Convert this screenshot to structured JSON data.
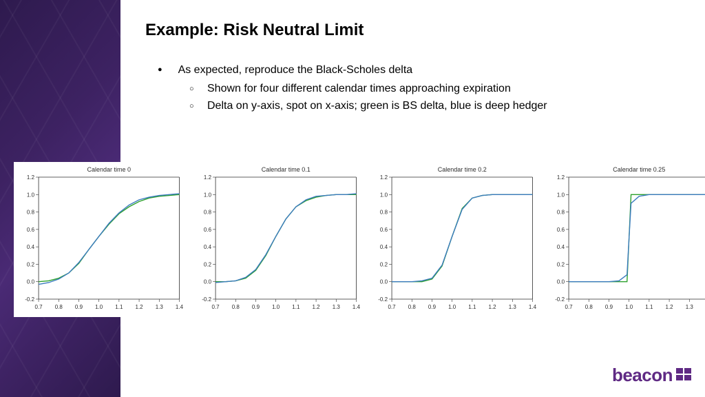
{
  "title": "Example: Risk Neutral Limit",
  "bullets": {
    "main": "As expected, reproduce the Black-Scholes delta",
    "sub1": "Shown for four different calendar times approaching expiration",
    "sub2": "Delta on y-axis, spot on x-axis; green is BS delta, blue is deep hedger"
  },
  "logo_text": "beacon",
  "brand_color": "#5f2a84",
  "sidebar_gradient": [
    "#2e1a4e",
    "#3d2262",
    "#4a2a75"
  ],
  "chart_common": {
    "type": "line",
    "xlim": [
      0.7,
      1.4
    ],
    "ylim": [
      -0.2,
      1.2
    ],
    "xticks": [
      0.7,
      0.8,
      0.9,
      1.0,
      1.1,
      1.2,
      1.3,
      1.4
    ],
    "yticks": [
      -0.2,
      0.0,
      0.2,
      0.4,
      0.6,
      0.8,
      1.0,
      1.2
    ],
    "background_color": "#ffffff",
    "axis_color": "#2d2d2d",
    "title_fontsize": 9,
    "tick_fontsize": 8,
    "line_width": 1.4,
    "series_colors": {
      "bs_delta": "#2ca02c",
      "deep_hedger": "#3b7bbf"
    }
  },
  "charts": [
    {
      "title": "Calendar time 0",
      "x": [
        0.7,
        0.75,
        0.8,
        0.85,
        0.9,
        0.95,
        1.0,
        1.05,
        1.1,
        1.15,
        1.2,
        1.25,
        1.3,
        1.35,
        1.4
      ],
      "bs": [
        0.0,
        0.01,
        0.04,
        0.1,
        0.21,
        0.37,
        0.52,
        0.66,
        0.78,
        0.86,
        0.92,
        0.96,
        0.98,
        0.99,
        1.0
      ],
      "dh": [
        -0.03,
        -0.01,
        0.03,
        0.1,
        0.22,
        0.37,
        0.52,
        0.67,
        0.79,
        0.88,
        0.94,
        0.97,
        0.99,
        1.0,
        1.01
      ]
    },
    {
      "title": "Calendar time 0.1",
      "x": [
        0.7,
        0.75,
        0.8,
        0.85,
        0.9,
        0.95,
        1.0,
        1.05,
        1.1,
        1.15,
        1.2,
        1.25,
        1.3,
        1.35,
        1.4
      ],
      "bs": [
        0.0,
        0.0,
        0.01,
        0.04,
        0.13,
        0.3,
        0.52,
        0.72,
        0.86,
        0.93,
        0.97,
        0.99,
        1.0,
        1.0,
        1.0
      ],
      "dh": [
        -0.01,
        0.0,
        0.01,
        0.05,
        0.14,
        0.31,
        0.52,
        0.72,
        0.86,
        0.94,
        0.98,
        0.99,
        1.0,
        1.0,
        1.01
      ]
    },
    {
      "title": "Calendar time 0.2",
      "x": [
        0.7,
        0.75,
        0.8,
        0.85,
        0.9,
        0.95,
        1.0,
        1.05,
        1.1,
        1.15,
        1.2,
        1.25,
        1.3,
        1.35,
        1.4
      ],
      "bs": [
        0.0,
        0.0,
        0.0,
        0.0,
        0.03,
        0.18,
        0.52,
        0.84,
        0.96,
        0.99,
        1.0,
        1.0,
        1.0,
        1.0,
        1.0
      ],
      "dh": [
        0.0,
        0.0,
        0.0,
        0.01,
        0.04,
        0.19,
        0.52,
        0.83,
        0.96,
        0.99,
        1.0,
        1.0,
        1.0,
        1.0,
        1.0
      ]
    },
    {
      "title": "Calendar time 0.25",
      "x": [
        0.7,
        0.75,
        0.8,
        0.85,
        0.9,
        0.95,
        0.99,
        1.0,
        1.01,
        1.05,
        1.1,
        1.15,
        1.2,
        1.25,
        1.3,
        1.35,
        1.4
      ],
      "bs": [
        0.0,
        0.0,
        0.0,
        0.0,
        0.0,
        0.0,
        0.0,
        0.5,
        1.0,
        1.0,
        1.0,
        1.0,
        1.0,
        1.0,
        1.0,
        1.0,
        1.0
      ],
      "dh": [
        0.0,
        0.0,
        0.0,
        0.0,
        0.0,
        0.01,
        0.08,
        0.5,
        0.9,
        0.98,
        1.0,
        1.0,
        1.0,
        1.0,
        1.0,
        1.0,
        1.0
      ]
    }
  ]
}
